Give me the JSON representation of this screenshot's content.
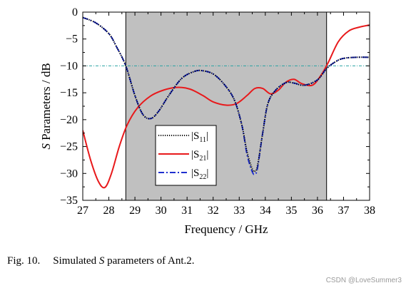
{
  "chart_data": {
    "type": "line",
    "xlabel": "Frequency / GHz",
    "ylabel_italic": "S",
    "ylabel_rest": " Parameters / dB",
    "xlim": [
      27,
      38
    ],
    "ylim": [
      -35,
      0
    ],
    "x_ticks": [
      27,
      28,
      29,
      30,
      31,
      32,
      33,
      34,
      35,
      36,
      37,
      38
    ],
    "y_ticks": [
      0,
      -5,
      -10,
      -15,
      -20,
      -25,
      -30,
      -35
    ],
    "grid": false,
    "shaded_band": {
      "x_start": 28.65,
      "x_end": 36.35,
      "color": "#c0c0c0"
    },
    "reference_line": {
      "y": -10,
      "color": "#2aa3a3"
    },
    "legend": {
      "placement": "center-left"
    },
    "series": [
      {
        "name_prefix": "|S",
        "name_sub": "11",
        "name_suffix": "|",
        "color": "#000000",
        "style": "dotted",
        "x": [
          27,
          27.5,
          28,
          28.3,
          28.65,
          29,
          29.3,
          29.6,
          29.9,
          30.3,
          30.8,
          31.3,
          31.6,
          32.0,
          32.4,
          32.8,
          33.1,
          33.3,
          33.5,
          33.6,
          33.7,
          33.9,
          34.1,
          34.4,
          34.8,
          35.1,
          35.5,
          36.0,
          36.35,
          36.7,
          37.0,
          37.5,
          38
        ],
        "y": [
          -1,
          -2,
          -4,
          -6.5,
          -10,
          -15.5,
          -19,
          -19.8,
          -18.5,
          -15.5,
          -12.3,
          -11,
          -10.9,
          -11.5,
          -13.3,
          -16.2,
          -21,
          -26,
          -29.2,
          -29.6,
          -28.6,
          -22.5,
          -17,
          -14.5,
          -13.1,
          -13.2,
          -13.6,
          -12.6,
          -10.5,
          -9.2,
          -8.6,
          -8.4,
          -8.4
        ]
      },
      {
        "name_prefix": "|S",
        "name_sub": "21",
        "name_suffix": "|",
        "color": "#e8191b",
        "style": "solid",
        "x": [
          27,
          27.3,
          27.6,
          27.85,
          28.1,
          28.4,
          28.7,
          29.1,
          29.6,
          30.1,
          30.6,
          31.1,
          31.6,
          32.0,
          32.5,
          32.9,
          33.3,
          33.6,
          33.9,
          34.2,
          34.5,
          34.8,
          35.1,
          35.4,
          35.8,
          36.1,
          36.4,
          36.8,
          37.2,
          37.6,
          38
        ],
        "y": [
          -22,
          -27.5,
          -31.5,
          -32.6,
          -30,
          -25,
          -21,
          -17.8,
          -15.6,
          -14.5,
          -14,
          -14.3,
          -15.5,
          -16.7,
          -17.3,
          -17,
          -15.5,
          -14.2,
          -14.2,
          -15.2,
          -14.5,
          -13,
          -12.5,
          -13.3,
          -13.6,
          -12,
          -9.5,
          -5.5,
          -3.5,
          -2.8,
          -2.4
        ]
      },
      {
        "name_prefix": "|S",
        "name_sub": "22",
        "name_suffix": "|",
        "color": "#1f2fcf",
        "style": "dashdot",
        "x": [
          27,
          27.5,
          28,
          28.3,
          28.65,
          29,
          29.3,
          29.6,
          29.9,
          30.3,
          30.8,
          31.3,
          31.6,
          32.0,
          32.4,
          32.8,
          33.1,
          33.3,
          33.5,
          33.6,
          33.7,
          33.9,
          34.1,
          34.4,
          34.8,
          35.1,
          35.5,
          36.0,
          36.35,
          36.7,
          37.0,
          37.5,
          38
        ],
        "y": [
          -1,
          -2,
          -4,
          -6.5,
          -10,
          -15.5,
          -19,
          -19.8,
          -18.5,
          -15.5,
          -12.3,
          -11,
          -10.9,
          -11.5,
          -13.3,
          -16.2,
          -21,
          -26.5,
          -29.7,
          -30.1,
          -29,
          -22.5,
          -17,
          -14.5,
          -13.1,
          -13.2,
          -13.6,
          -12.6,
          -10.5,
          -9.2,
          -8.6,
          -8.4,
          -8.4
        ]
      }
    ]
  },
  "caption": {
    "fig_number": "Fig. 10.",
    "text_before": "Simulated ",
    "text_italic": "S",
    "text_after": " parameters of Ant.2."
  },
  "watermark": "CSDN @LoveSummer3"
}
